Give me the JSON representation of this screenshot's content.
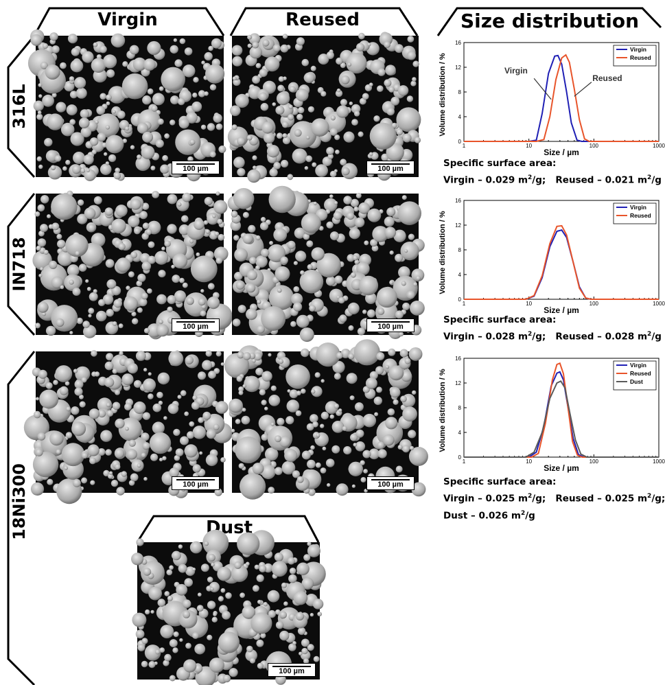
{
  "headers": {
    "virgin": "Virgin",
    "reused": "Reused",
    "size_distribution": "Size distribution",
    "dust": "Dust"
  },
  "rows": {
    "r316l": "316L",
    "in718": "IN718",
    "ni300": "18Ni300"
  },
  "scale_label": "100 µm",
  "surface_area": {
    "r316l": {
      "line1": "Specific surface area:",
      "virgin": "Virgin – 0.029 m",
      "virgin_unit": "/g;",
      "reused": "Reused – 0.021 m",
      "reused_unit": "/g"
    },
    "in718": {
      "line1": "Specific surface area:",
      "virgin": "Virgin – 0.028 m",
      "virgin_unit": "/g;",
      "reused": "Reused – 0.028 m",
      "reused_unit": "/g"
    },
    "ni300": {
      "line1": "Specific surface area:",
      "virgin": "Virgin – 0.025 m",
      "virgin_unit": "/g;",
      "reused": "Reused – 0.025 m",
      "reused_unit": "/g;",
      "dust": "Dust – 0.026 m",
      "dust_unit": "/g"
    },
    "sup": "2"
  },
  "colors": {
    "virgin": "#1f1fb4",
    "reused": "#e8542a",
    "dust": "#5a5a5a"
  },
  "chart_data": [
    {
      "id": "316L",
      "type": "line",
      "xscale": "log",
      "xlim": [
        1,
        1000
      ],
      "ylim": [
        0,
        16
      ],
      "xticks": [
        1,
        10,
        100,
        1000
      ],
      "yticks": [
        0,
        4,
        8,
        12,
        16
      ],
      "xlabel": "Size / µm",
      "ylabel": "Volume distribution / %",
      "legend": "top-right",
      "annotations": [
        "Virgin",
        "Reused"
      ],
      "series": [
        {
          "name": "Virgin",
          "color": "#1f1fb4",
          "x": [
            10,
            13,
            16,
            20,
            25,
            28,
            32,
            38,
            45,
            55,
            65
          ],
          "y": [
            0,
            0.2,
            4.5,
            11.0,
            13.8,
            13.9,
            12.5,
            8.0,
            3.0,
            0.2,
            0
          ]
        },
        {
          "name": "Reused",
          "color": "#e8542a",
          "x": [
            13,
            17,
            21,
            26,
            32,
            37,
            42,
            50,
            60,
            72,
            85
          ],
          "y": [
            0,
            0.3,
            4.0,
            10.0,
            13.5,
            14.0,
            12.8,
            8.5,
            3.5,
            0.4,
            0
          ]
        }
      ]
    },
    {
      "id": "IN718",
      "type": "line",
      "xscale": "log",
      "xlim": [
        1,
        1000
      ],
      "ylim": [
        0,
        16
      ],
      "xticks": [
        1,
        10,
        100,
        1000
      ],
      "yticks": [
        0,
        4,
        8,
        12,
        16
      ],
      "xlabel": "Size / µm",
      "ylabel": "Volume distribution / %",
      "legend": "top-right",
      "series": [
        {
          "name": "Virgin",
          "color": "#1f1fb4",
          "x": [
            9,
            12,
            16,
            21,
            27,
            32,
            38,
            48,
            60,
            75,
            90
          ],
          "y": [
            0,
            0.5,
            3.5,
            8.5,
            11.0,
            11.2,
            10.0,
            6.0,
            2.0,
            0.2,
            0
          ]
        },
        {
          "name": "Reused",
          "color": "#e8542a",
          "x": [
            9,
            12,
            16,
            21,
            27,
            32,
            38,
            48,
            60,
            75,
            90
          ],
          "y": [
            0,
            0.6,
            3.8,
            9.0,
            11.8,
            11.9,
            10.4,
            6.0,
            1.8,
            0.2,
            0
          ]
        }
      ]
    },
    {
      "id": "18Ni300",
      "type": "line",
      "xscale": "log",
      "xlim": [
        1,
        1000
      ],
      "ylim": [
        0,
        16
      ],
      "xticks": [
        1,
        10,
        100,
        1000
      ],
      "yticks": [
        0,
        4,
        8,
        12,
        16
      ],
      "xlabel": "Size / µm",
      "ylabel": "Volume distribution / %",
      "legend": "top-right",
      "series": [
        {
          "name": "Virgin",
          "color": "#1f1fb4",
          "x": [
            10,
            13,
            17,
            22,
            27,
            30,
            34,
            40,
            48,
            58,
            70
          ],
          "y": [
            0,
            0.8,
            5.0,
            11.5,
            13.6,
            13.8,
            12.5,
            8.0,
            3.0,
            0.4,
            0
          ]
        },
        {
          "name": "Reused",
          "color": "#e8542a",
          "x": [
            11,
            14,
            18,
            23,
            27,
            30,
            34,
            40,
            47,
            56,
            66
          ],
          "y": [
            0,
            0.6,
            5.5,
            12.5,
            15.0,
            15.2,
            13.5,
            8.0,
            2.5,
            0.3,
            0
          ]
        },
        {
          "name": "Dust",
          "color": "#5a5a5a",
          "x": [
            9,
            12,
            16,
            21,
            27,
            31,
            36,
            43,
            52,
            63,
            78
          ],
          "y": [
            0,
            0.8,
            4.0,
            9.5,
            12.0,
            12.3,
            11.2,
            7.0,
            2.8,
            0.5,
            0
          ]
        }
      ]
    }
  ]
}
